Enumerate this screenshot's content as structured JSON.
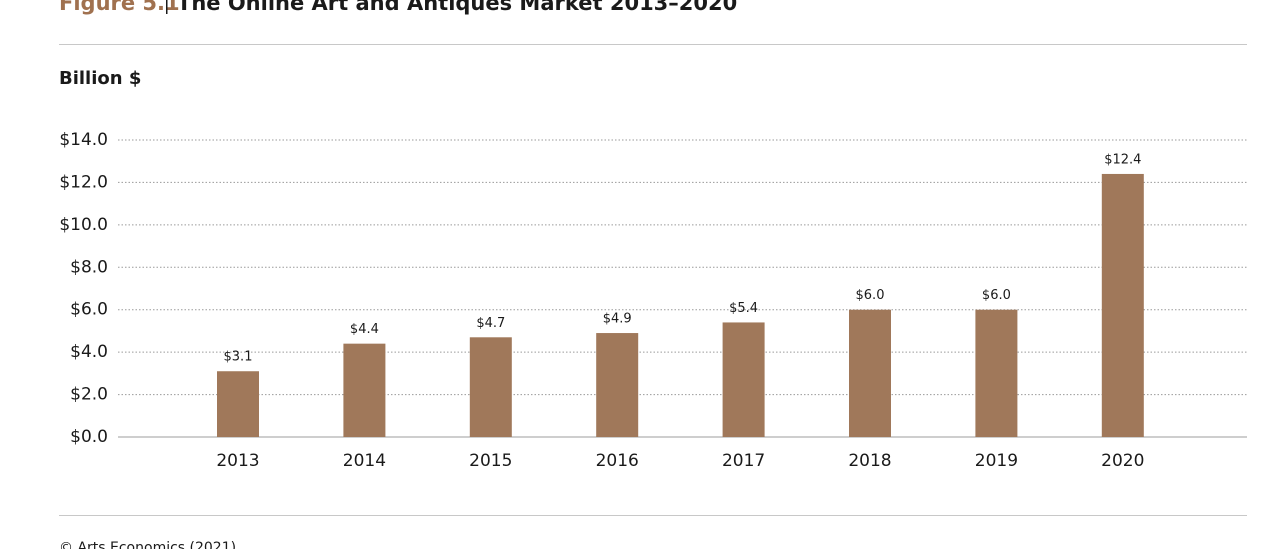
{
  "chart_data": {
    "type": "bar",
    "figure_label": "Figure 5.1",
    "title": "The Online Art and Antiques Market 2013–2020",
    "y_axis_label": "Billion $",
    "source": "© Arts Economics (2021)",
    "categories": [
      "2013",
      "2014",
      "2015",
      "2016",
      "2017",
      "2018",
      "2019",
      "2020"
    ],
    "values": [
      3.1,
      4.4,
      4.7,
      4.9,
      5.4,
      6.0,
      6.0,
      12.4
    ],
    "value_labels": [
      "$3.1",
      "$4.4",
      "$4.7",
      "$4.9",
      "$5.4",
      "$6.0",
      "$6.0",
      "$12.4"
    ],
    "color": "#a0785a",
    "ylim": [
      0,
      14
    ],
    "yticks": [
      {
        "value": 0,
        "label": "$0.0"
      },
      {
        "value": 2,
        "label": "$2.0"
      },
      {
        "value": 4,
        "label": "$4.0"
      },
      {
        "value": 6,
        "label": "$6.0"
      },
      {
        "value": 8,
        "label": "$8.0"
      },
      {
        "value": 10,
        "label": "$10.0"
      },
      {
        "value": 12,
        "label": "$12.0"
      },
      {
        "value": 14,
        "label": "$14.0"
      }
    ],
    "grid": true
  }
}
